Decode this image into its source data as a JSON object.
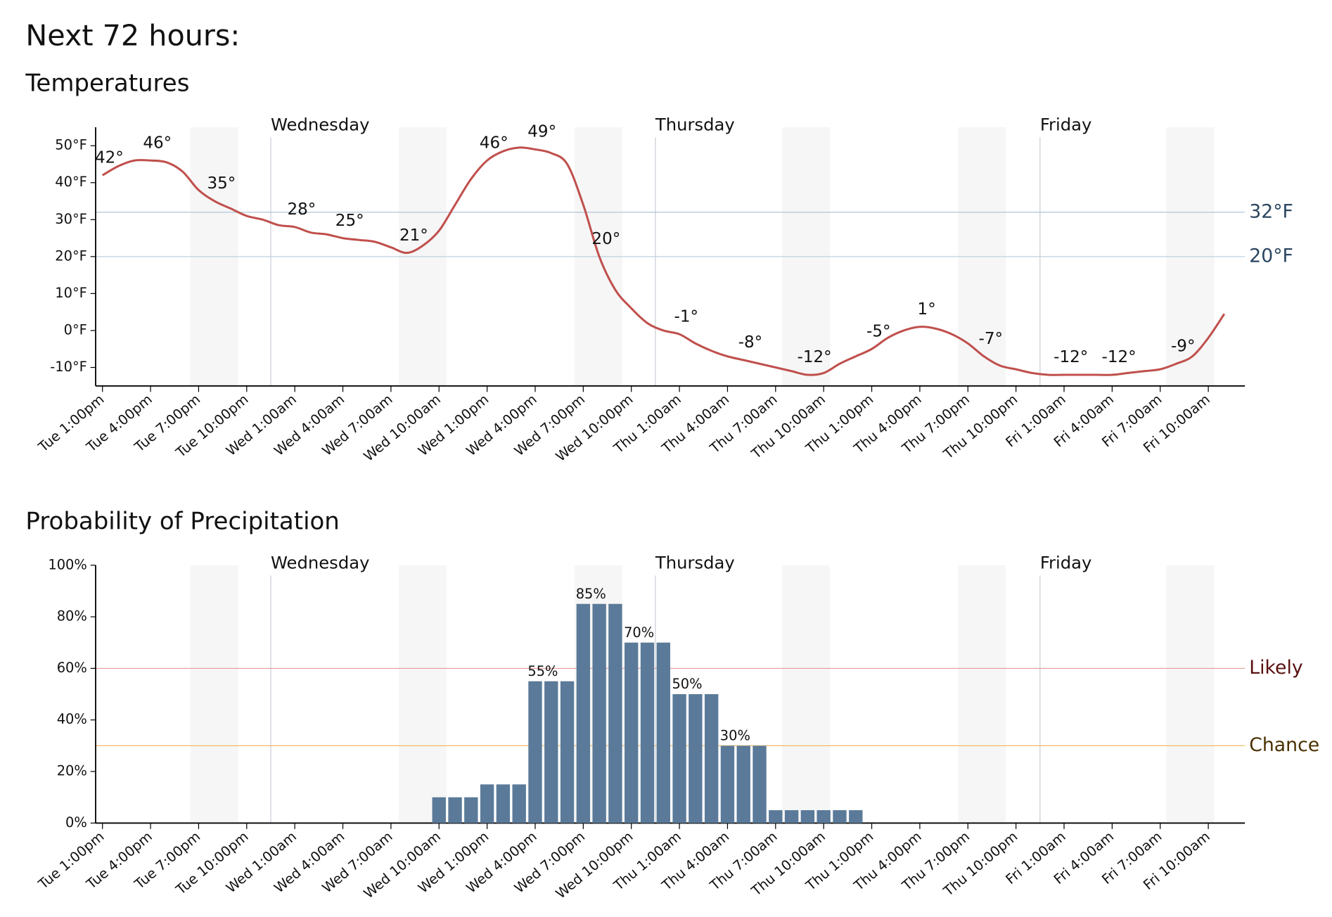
{
  "title": "Next 72 hours:",
  "chart_data": [
    {
      "type": "line",
      "title": "Temperatures",
      "categories": [
        "Tue 1:00pm",
        null,
        null,
        "Tue 4:00pm",
        null,
        null,
        "Tue 7:00pm",
        null,
        null,
        "Tue 10:00pm",
        null,
        null,
        "Wed 1:00am",
        null,
        null,
        "Wed 4:00am",
        null,
        null,
        "Wed 7:00am",
        null,
        null,
        "Wed 10:00am",
        null,
        null,
        "Wed 1:00pm",
        null,
        null,
        "Wed 4:00pm",
        null,
        null,
        "Wed 7:00pm",
        null,
        null,
        "Wed 10:00pm",
        null,
        null,
        "Thu 1:00am",
        null,
        null,
        "Thu 4:00am",
        null,
        null,
        "Thu 7:00am",
        null,
        null,
        "Thu 10:00am",
        null,
        null,
        "Thu 1:00pm",
        null,
        null,
        "Thu 4:00pm",
        null,
        null,
        "Thu 7:00pm",
        null,
        null,
        "Thu 10:00pm",
        null,
        null,
        "Fri 1:00am",
        null,
        null,
        "Fri 4:00am",
        null,
        null,
        "Fri 7:00am",
        null,
        null,
        "Fri 10:00am",
        null
      ],
      "series": [
        {
          "color": "#c0504d",
          "values": [
            42,
            44.5,
            46,
            46,
            45.5,
            43,
            38,
            35,
            33,
            31,
            30,
            28.5,
            28,
            26.5,
            26,
            25,
            24.5,
            24,
            22.5,
            21,
            23,
            27,
            34,
            41,
            46,
            48.5,
            49.5,
            49,
            48,
            45,
            34,
            20,
            11,
            6,
            2,
            0,
            -1,
            -3.5,
            -5.5,
            -7,
            -8,
            -9,
            -10,
            -11,
            -12,
            -11.5,
            -9,
            -7,
            -5,
            -2,
            0,
            1,
            0.5,
            -1,
            -3.5,
            -7,
            -9.5,
            -10.5,
            -11.5,
            -12,
            -12,
            -12,
            -12,
            -12,
            -11.5,
            -11,
            -10.5,
            -9,
            -7,
            -2,
            4.5
          ],
          "value_labels": [
            "42°",
            null,
            null,
            "46°",
            null,
            null,
            null,
            "35°",
            null,
            null,
            null,
            null,
            "28°",
            null,
            null,
            "25°",
            null,
            null,
            null,
            "21°",
            null,
            null,
            null,
            null,
            "46°",
            null,
            null,
            "49°",
            null,
            null,
            null,
            "20°",
            null,
            null,
            null,
            null,
            "-1°",
            null,
            null,
            null,
            "-8°",
            null,
            null,
            null,
            "-12°",
            null,
            null,
            null,
            "-5°",
            null,
            null,
            "1°",
            null,
            null,
            null,
            "-7°",
            null,
            null,
            null,
            null,
            "-12°",
            null,
            null,
            "-12°",
            null,
            null,
            null,
            "-9°",
            null,
            null,
            null
          ]
        }
      ],
      "ylim": [
        -15,
        55
      ],
      "yticks": [
        {
          "value": -10,
          "label": "-10°F"
        },
        {
          "value": 0,
          "label": "0°F"
        },
        {
          "value": 10,
          "label": "10°F"
        },
        {
          "value": 20,
          "label": "20°F"
        },
        {
          "value": 30,
          "label": "30°F"
        },
        {
          "value": 40,
          "label": "40°F"
        },
        {
          "value": 50,
          "label": "50°F"
        }
      ],
      "reference_lines": [
        {
          "value": 32,
          "label": "32°F",
          "color": "#a9bfd3",
          "label_color": "#2b4660"
        },
        {
          "value": 20,
          "label": "20°F",
          "color": "#bcd0e2",
          "label_color": "#2b4660"
        }
      ],
      "day_markers": [
        {
          "label": "Wednesday",
          "category": 11
        },
        {
          "label": "Thursday",
          "category": 35
        },
        {
          "label": "Friday",
          "category": 59
        }
      ]
    },
    {
      "type": "bar",
      "title": "Probability of Precipitation",
      "categories": [
        "Tue 1:00pm",
        null,
        null,
        "Tue 4:00pm",
        null,
        null,
        "Tue 7:00pm",
        null,
        null,
        "Tue 10:00pm",
        null,
        null,
        "Wed 1:00am",
        null,
        null,
        "Wed 4:00am",
        null,
        null,
        "Wed 7:00am",
        null,
        null,
        "Wed 10:00am",
        null,
        null,
        "Wed 1:00pm",
        null,
        null,
        "Wed 4:00pm",
        null,
        null,
        "Wed 7:00pm",
        null,
        null,
        "Wed 10:00pm",
        null,
        null,
        "Thu 1:00am",
        null,
        null,
        "Thu 4:00am",
        null,
        null,
        "Thu 7:00am",
        null,
        null,
        "Thu 10:00am",
        null,
        null,
        "Thu 1:00pm",
        null,
        null,
        "Thu 4:00pm",
        null,
        null,
        "Thu 7:00pm",
        null,
        null,
        "Thu 10:00pm",
        null,
        null,
        "Fri 1:00am",
        null,
        null,
        "Fri 4:00am",
        null,
        null,
        "Fri 7:00am",
        null,
        null,
        "Fri 10:00am",
        null
      ],
      "series": [
        {
          "color": "#5b7a99",
          "values": [
            0,
            0,
            0,
            0,
            0,
            0,
            0,
            0,
            0,
            0,
            0,
            0,
            0,
            0,
            0,
            0,
            0,
            0,
            0,
            0,
            0,
            10,
            10,
            10,
            15,
            15,
            15,
            55,
            55,
            55,
            85,
            85,
            85,
            70,
            70,
            70,
            50,
            50,
            50,
            30,
            30,
            30,
            5,
            5,
            5,
            5,
            5,
            5,
            0,
            0,
            0,
            0,
            0,
            0,
            0,
            0,
            0,
            0,
            0,
            0,
            0,
            0,
            0,
            0,
            0,
            0,
            0,
            0,
            0,
            0,
            0
          ],
          "value_labels": [
            null,
            null,
            null,
            null,
            null,
            null,
            null,
            null,
            null,
            null,
            null,
            null,
            null,
            null,
            null,
            null,
            null,
            null,
            null,
            null,
            null,
            null,
            null,
            null,
            null,
            null,
            null,
            "55%",
            null,
            null,
            "85%",
            null,
            null,
            "70%",
            null,
            null,
            "50%",
            null,
            null,
            "30%",
            null,
            null,
            null,
            null,
            null,
            null,
            null,
            null,
            null,
            null,
            null,
            null,
            null,
            null,
            null,
            null,
            null,
            null,
            null,
            null,
            null,
            null,
            null,
            null,
            null,
            null,
            null,
            null,
            null,
            null,
            null
          ]
        }
      ],
      "ylim": [
        0,
        100
      ],
      "yticks": [
        {
          "value": 0,
          "label": "0%"
        },
        {
          "value": 20,
          "label": "20%"
        },
        {
          "value": 40,
          "label": "40%"
        },
        {
          "value": 60,
          "label": "60%"
        },
        {
          "value": 80,
          "label": "80%"
        },
        {
          "value": 100,
          "label": "100%"
        }
      ],
      "reference_lines": [
        {
          "value": 60,
          "label": "Likely",
          "color": "#e39a9a",
          "label_color": "#5a1010"
        },
        {
          "value": 30,
          "label": "Chance",
          "color": "#f2b65a",
          "label_color": "#4a3000"
        }
      ],
      "day_markers": [
        {
          "label": "Wednesday",
          "category": 11
        },
        {
          "label": "Thursday",
          "category": 35
        },
        {
          "label": "Friday",
          "category": 59
        }
      ]
    }
  ]
}
